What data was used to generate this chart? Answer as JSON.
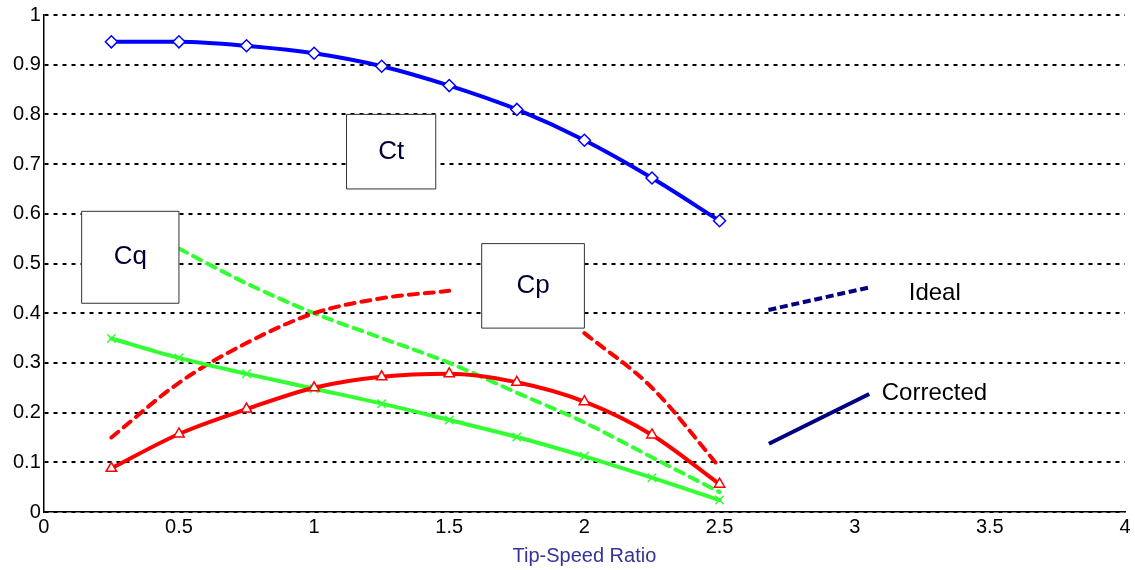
{
  "chart_data": {
    "type": "line",
    "xlabel": "Tip-Speed Ratio",
    "xlim": [
      0,
      4
    ],
    "xticks": [
      0,
      0.5,
      1,
      1.5,
      2,
      2.5,
      3,
      3.5,
      4
    ],
    "ylim": [
      0,
      1
    ],
    "yticks": [
      0,
      0.1,
      0.2,
      0.3,
      0.4,
      0.5,
      0.6,
      0.7,
      0.8,
      0.9,
      1
    ],
    "grid": "y",
    "annotations": [
      "Ideal",
      "Corrected"
    ],
    "x": [
      0.25,
      0.5,
      0.75,
      1,
      1.25,
      1.5,
      1.75,
      2,
      2.25,
      2.5
    ],
    "series": [
      {
        "name": "Ct",
        "color": "#0000ff",
        "marker": "diamond",
        "line_style": "solid",
        "values": [
          0.946,
          0.946,
          0.938,
          0.923,
          0.897,
          0.858,
          0.81,
          0.748,
          0.672,
          0.586
        ]
      },
      {
        "name": "Cp",
        "color": "#ff0000",
        "marker": "triangle",
        "line_style": "solid",
        "values": [
          0.088,
          0.157,
          0.207,
          0.25,
          0.272,
          0.278,
          0.261,
          0.222,
          0.155,
          0.056
        ]
      },
      {
        "name": "Cq",
        "color": "#33ff33",
        "marker": "cross",
        "line_style": "solid",
        "values": [
          0.349,
          0.31,
          0.278,
          0.248,
          0.218,
          0.185,
          0.151,
          0.112,
          0.069,
          0.024
        ]
      },
      {
        "color": "#ff0000",
        "marker": "none",
        "line_style": "dashed",
        "values": [
          0.15,
          0.26,
          0.34,
          0.4,
          0.43,
          0.445,
          null,
          0.36,
          0.25,
          0.09
        ]
      },
      {
        "color": "#33ff33",
        "marker": "none",
        "line_style": "dashed",
        "values": [
          null,
          0.53,
          0.46,
          0.4,
          0.35,
          0.3,
          0.24,
          0.18,
          0.11,
          0.04
        ]
      }
    ]
  }
}
